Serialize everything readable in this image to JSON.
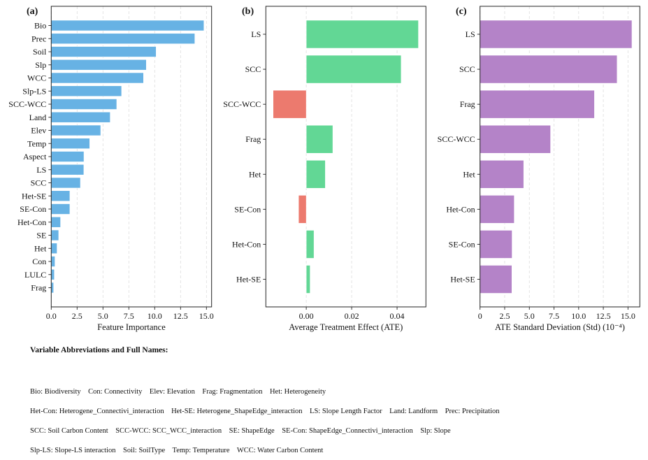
{
  "chart_data": [
    {
      "panel": "(a)",
      "type": "bar",
      "orientation": "horizontal",
      "categories": [
        "Bio",
        "Prec",
        "Soil",
        "Slp",
        "WCC",
        "Slp-LS",
        "SCC-WCC",
        "Land",
        "Elev",
        "Temp",
        "Aspect",
        "LS",
        "SCC",
        "Het-SE",
        "SE-Con",
        "Het-Con",
        "SE",
        "Het",
        "Con",
        "LULC",
        "Frag"
      ],
      "values": [
        14.76,
        13.88,
        10.14,
        9.19,
        8.92,
        6.8,
        6.33,
        5.7,
        4.78,
        3.72,
        3.16,
        3.15,
        2.82,
        1.8,
        1.8,
        0.9,
        0.72,
        0.56,
        0.36,
        0.3,
        0.23
      ],
      "xlabel": "Feature Importance",
      "ylabel": "",
      "xlim": [
        0,
        15.5
      ],
      "xticks": [
        0,
        2.5,
        5,
        7.5,
        10,
        12.5,
        15
      ],
      "xtick_labels": [
        "0.0",
        "2.5",
        "5.0",
        "7.5",
        "10.0",
        "12.5",
        "15.0"
      ],
      "grid": "x, dashed",
      "colors": {
        "bar": "#67b2e4"
      }
    },
    {
      "panel": "(b)",
      "type": "bar",
      "orientation": "horizontal",
      "categories": [
        "LS",
        "SCC",
        "SCC-WCC",
        "Frag",
        "Het",
        "SE-Con",
        "Het-Con",
        "Het-SE"
      ],
      "values": [
        0.0494,
        0.0418,
        -0.0146,
        0.0117,
        0.0084,
        -0.0034,
        0.0034,
        0.0017
      ],
      "xlabel": "Average Treatment Effect (ATE)",
      "ylabel": "",
      "xlim": [
        -0.0178,
        0.0527
      ],
      "xticks": [
        0,
        0.02,
        0.04
      ],
      "xtick_labels": [
        "0.00",
        "0.02",
        "0.04"
      ],
      "grid": "x, dashed",
      "colors": {
        "positive": "#62d795",
        "negative": "#ec7a6e"
      }
    },
    {
      "panel": "(c)",
      "type": "bar",
      "orientation": "horizontal",
      "categories": [
        "LS",
        "SCC",
        "Frag",
        "SCC-WCC",
        "Het",
        "Het-Con",
        "SE-Con",
        "Het-SE"
      ],
      "values": [
        15.4,
        13.9,
        11.6,
        7.15,
        4.43,
        3.47,
        3.25,
        3.23
      ],
      "xlabel": "ATE Standard Deviation (Std) (10⁻⁴)",
      "ylabel": "",
      "xlim": [
        0,
        16.2
      ],
      "xticks": [
        0,
        2.5,
        5,
        7.5,
        10,
        12.5,
        15
      ],
      "xtick_labels": [
        "0",
        "2.5",
        "5.0",
        "7.5",
        "10.0",
        "12.5",
        "15.0"
      ],
      "grid": "x, dashed",
      "colors": {
        "bar": "#b483c8"
      }
    }
  ],
  "legend": {
    "title": "Variable Abbreviations and Full Names:",
    "lines": [
      "Bio: Biodiversity    Con: Connectivity    Elev: Elevation    Frag: Fragmentation    Het: Heterogeneity",
      "Het-Con: Heterogene_Connectivi_interaction    Het-SE: Heterogene_ShapeEdge_interaction    LS: Slope Length Factor    Land: Landform    Prec: Precipitation",
      "SCC: Soil Carbon Content    SCC-WCC: SCC_WCC_interaction    SE: ShapeEdge    SE-Con: ShapeEdge_Connectivi_interaction    Slp: Slope",
      "Slp-LS: Slope-LS interaction    Soil: SoilType    Temp: Temperature    WCC: Water Carbon Content"
    ]
  }
}
